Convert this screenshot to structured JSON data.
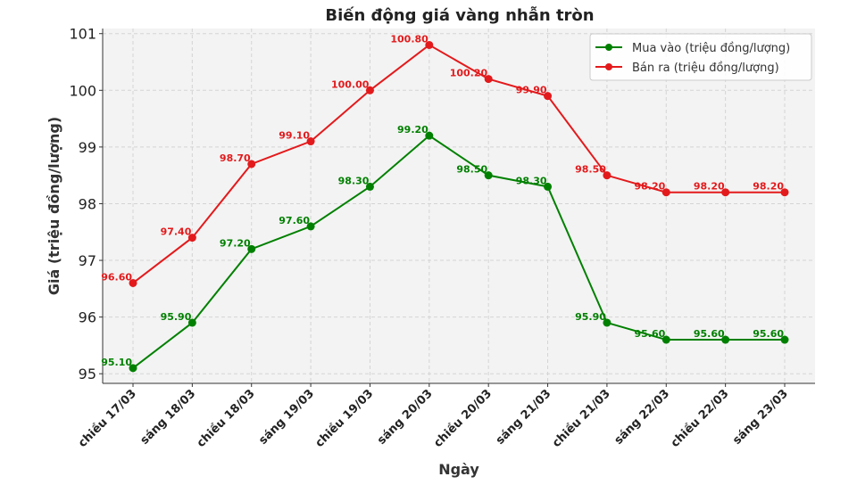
{
  "chart_data": {
    "type": "line",
    "title": "Biến động giá vàng nhẫn tròn",
    "xlabel": "Ngày",
    "ylabel": "Giá (triệu đồng/lượng)",
    "categories": [
      "chiều 17/03",
      "sáng 18/03",
      "chiều 18/03",
      "sáng 19/03",
      "chiều 19/03",
      "sáng 20/03",
      "chiều 20/03",
      "sáng 21/03",
      "chiều 21/03",
      "sáng 22/03",
      "chiều 22/03",
      "sáng 23/03"
    ],
    "yticks": [
      95,
      96,
      97,
      98,
      99,
      100,
      101
    ],
    "ylim": [
      94.83,
      101.09
    ],
    "grid": true,
    "legend_position": "top-right",
    "series": [
      {
        "name": "Mua vào (triệu đồng/lượng)",
        "color": "#008000",
        "values": [
          95.1,
          95.9,
          97.2,
          97.6,
          98.3,
          99.2,
          98.5,
          98.3,
          95.9,
          95.6,
          95.6,
          95.6
        ]
      },
      {
        "name": "Bán ra (triệu đồng/lượng)",
        "color": "#e31a1c",
        "values": [
          96.6,
          97.4,
          98.7,
          99.1,
          100.0,
          100.8,
          100.2,
          99.9,
          98.5,
          98.2,
          98.2,
          98.2
        ]
      }
    ]
  }
}
